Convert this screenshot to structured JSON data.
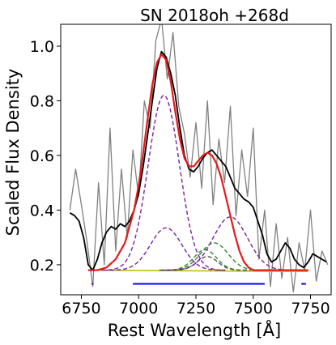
{
  "chart_data": {
    "type": "line",
    "title": "SN 2018oh  +268d",
    "xlabel": "Rest Wavelength [Å]",
    "ylabel": "Scaled Flux Density",
    "xlim": [
      6660,
      7840
    ],
    "ylim": [
      0.09,
      1.08
    ],
    "xticks": [
      6750,
      7000,
      7250,
      7500,
      7750
    ],
    "yticks": [
      0.2,
      0.4,
      0.6,
      0.8,
      1.0
    ],
    "xtick_labels": [
      "6750",
      "7000",
      "7250",
      "7500",
      "7750"
    ],
    "ytick_labels": [
      "0.2",
      "0.4",
      "0.6",
      "0.8",
      "1.0"
    ],
    "grid": false,
    "legend": "none",
    "series": [
      {
        "role": "raw-spectrum",
        "color": "#808080",
        "x": [
          6700,
          6725,
          6750,
          6775,
          6800,
          6825,
          6850,
          6875,
          6900,
          6925,
          6950,
          6975,
          7000,
          7025,
          7050,
          7075,
          7100,
          7125,
          7150,
          7175,
          7200,
          7225,
          7250,
          7275,
          7300,
          7325,
          7350,
          7375,
          7400,
          7425,
          7450,
          7475,
          7500,
          7525,
          7550,
          7575,
          7600,
          7625,
          7650,
          7675,
          7700,
          7725,
          7750,
          7775,
          7800,
          7825
        ],
        "y": [
          0.4,
          0.55,
          0.42,
          0.28,
          0.12,
          0.5,
          0.2,
          0.7,
          0.25,
          0.55,
          0.3,
          0.62,
          0.45,
          0.8,
          0.7,
          1.02,
          1.1,
          0.88,
          1.05,
          0.78,
          0.68,
          0.52,
          0.72,
          0.48,
          0.8,
          0.42,
          0.66,
          0.5,
          0.78,
          0.38,
          0.62,
          0.45,
          0.7,
          0.22,
          0.4,
          0.12,
          0.35,
          0.15,
          0.3,
          0.1,
          0.28,
          0.18,
          0.4,
          0.14,
          0.25,
          0.2
        ]
      },
      {
        "role": "smoothed-spectrum",
        "color": "#000000",
        "x": [
          6700,
          6720,
          6740,
          6760,
          6780,
          6800,
          6820,
          6840,
          6860,
          6880,
          6900,
          6920,
          6940,
          6960,
          6980,
          7000,
          7020,
          7040,
          7060,
          7080,
          7100,
          7120,
          7140,
          7160,
          7180,
          7200,
          7220,
          7240,
          7260,
          7280,
          7300,
          7320,
          7340,
          7360,
          7380,
          7400,
          7420,
          7440,
          7460,
          7480,
          7500,
          7520,
          7540,
          7560,
          7580,
          7600,
          7620,
          7640,
          7660,
          7680,
          7700,
          7720,
          7740,
          7760,
          7780,
          7800,
          7820
        ],
        "y": [
          0.39,
          0.38,
          0.36,
          0.3,
          0.2,
          0.18,
          0.22,
          0.28,
          0.32,
          0.34,
          0.33,
          0.35,
          0.34,
          0.36,
          0.4,
          0.46,
          0.56,
          0.68,
          0.8,
          0.92,
          0.98,
          0.96,
          0.9,
          0.82,
          0.7,
          0.6,
          0.55,
          0.54,
          0.56,
          0.59,
          0.61,
          0.62,
          0.6,
          0.58,
          0.56,
          0.52,
          0.48,
          0.46,
          0.44,
          0.43,
          0.41,
          0.36,
          0.31,
          0.24,
          0.21,
          0.22,
          0.25,
          0.28,
          0.26,
          0.22,
          0.2,
          0.19,
          0.21,
          0.24,
          0.23,
          0.22,
          0.21
        ]
      },
      {
        "role": "total-fit",
        "color": "#e41a1c",
        "x": [
          6780,
          6820,
          6860,
          6900,
          6940,
          6980,
          7000,
          7020,
          7040,
          7060,
          7080,
          7100,
          7120,
          7140,
          7160,
          7180,
          7200,
          7220,
          7240,
          7260,
          7280,
          7300,
          7320,
          7340,
          7360,
          7380,
          7400,
          7420,
          7440,
          7460,
          7480,
          7500,
          7540,
          7580,
          7620,
          7660,
          7700,
          7740
        ],
        "y": [
          0.18,
          0.18,
          0.19,
          0.22,
          0.28,
          0.4,
          0.49,
          0.61,
          0.74,
          0.86,
          0.94,
          0.97,
          0.95,
          0.87,
          0.76,
          0.66,
          0.59,
          0.56,
          0.56,
          0.58,
          0.6,
          0.61,
          0.6,
          0.57,
          0.52,
          0.45,
          0.38,
          0.31,
          0.25,
          0.21,
          0.19,
          0.18,
          0.18,
          0.18,
          0.18,
          0.18,
          0.18,
          0.18
        ]
      },
      {
        "role": "continuum",
        "color": "#bdb800",
        "x": [
          6780,
          7740
        ],
        "y": [
          0.18,
          0.175
        ]
      }
    ],
    "components": [
      {
        "center": 7110,
        "amplitude": 0.64,
        "sigma": 68,
        "color": "#7b1fa2"
      },
      {
        "center": 7120,
        "amplitude": 0.155,
        "sigma": 68,
        "color": "#7b1fa2"
      },
      {
        "center": 7290,
        "amplitude": 0.075,
        "sigma": 50,
        "color": "#2e8b2e"
      },
      {
        "center": 7330,
        "amplitude": 0.1,
        "sigma": 60,
        "color": "#2e8b2e"
      },
      {
        "center": 7300,
        "amplitude": 0.05,
        "sigma": 45,
        "color": "#555555"
      },
      {
        "center": 7400,
        "amplitude": 0.195,
        "sigma": 75,
        "color": "#7b1fa2"
      }
    ],
    "markers": [
      {
        "x_start": 6795,
        "x_end": 6803,
        "y": 0.13,
        "color": "#0000ff"
      },
      {
        "x_start": 6975,
        "x_end": 7550,
        "y": 0.13,
        "color": "#0000ff"
      },
      {
        "x_start": 7710,
        "x_end": 7730,
        "y": 0.13,
        "color": "#0000ff"
      }
    ]
  }
}
